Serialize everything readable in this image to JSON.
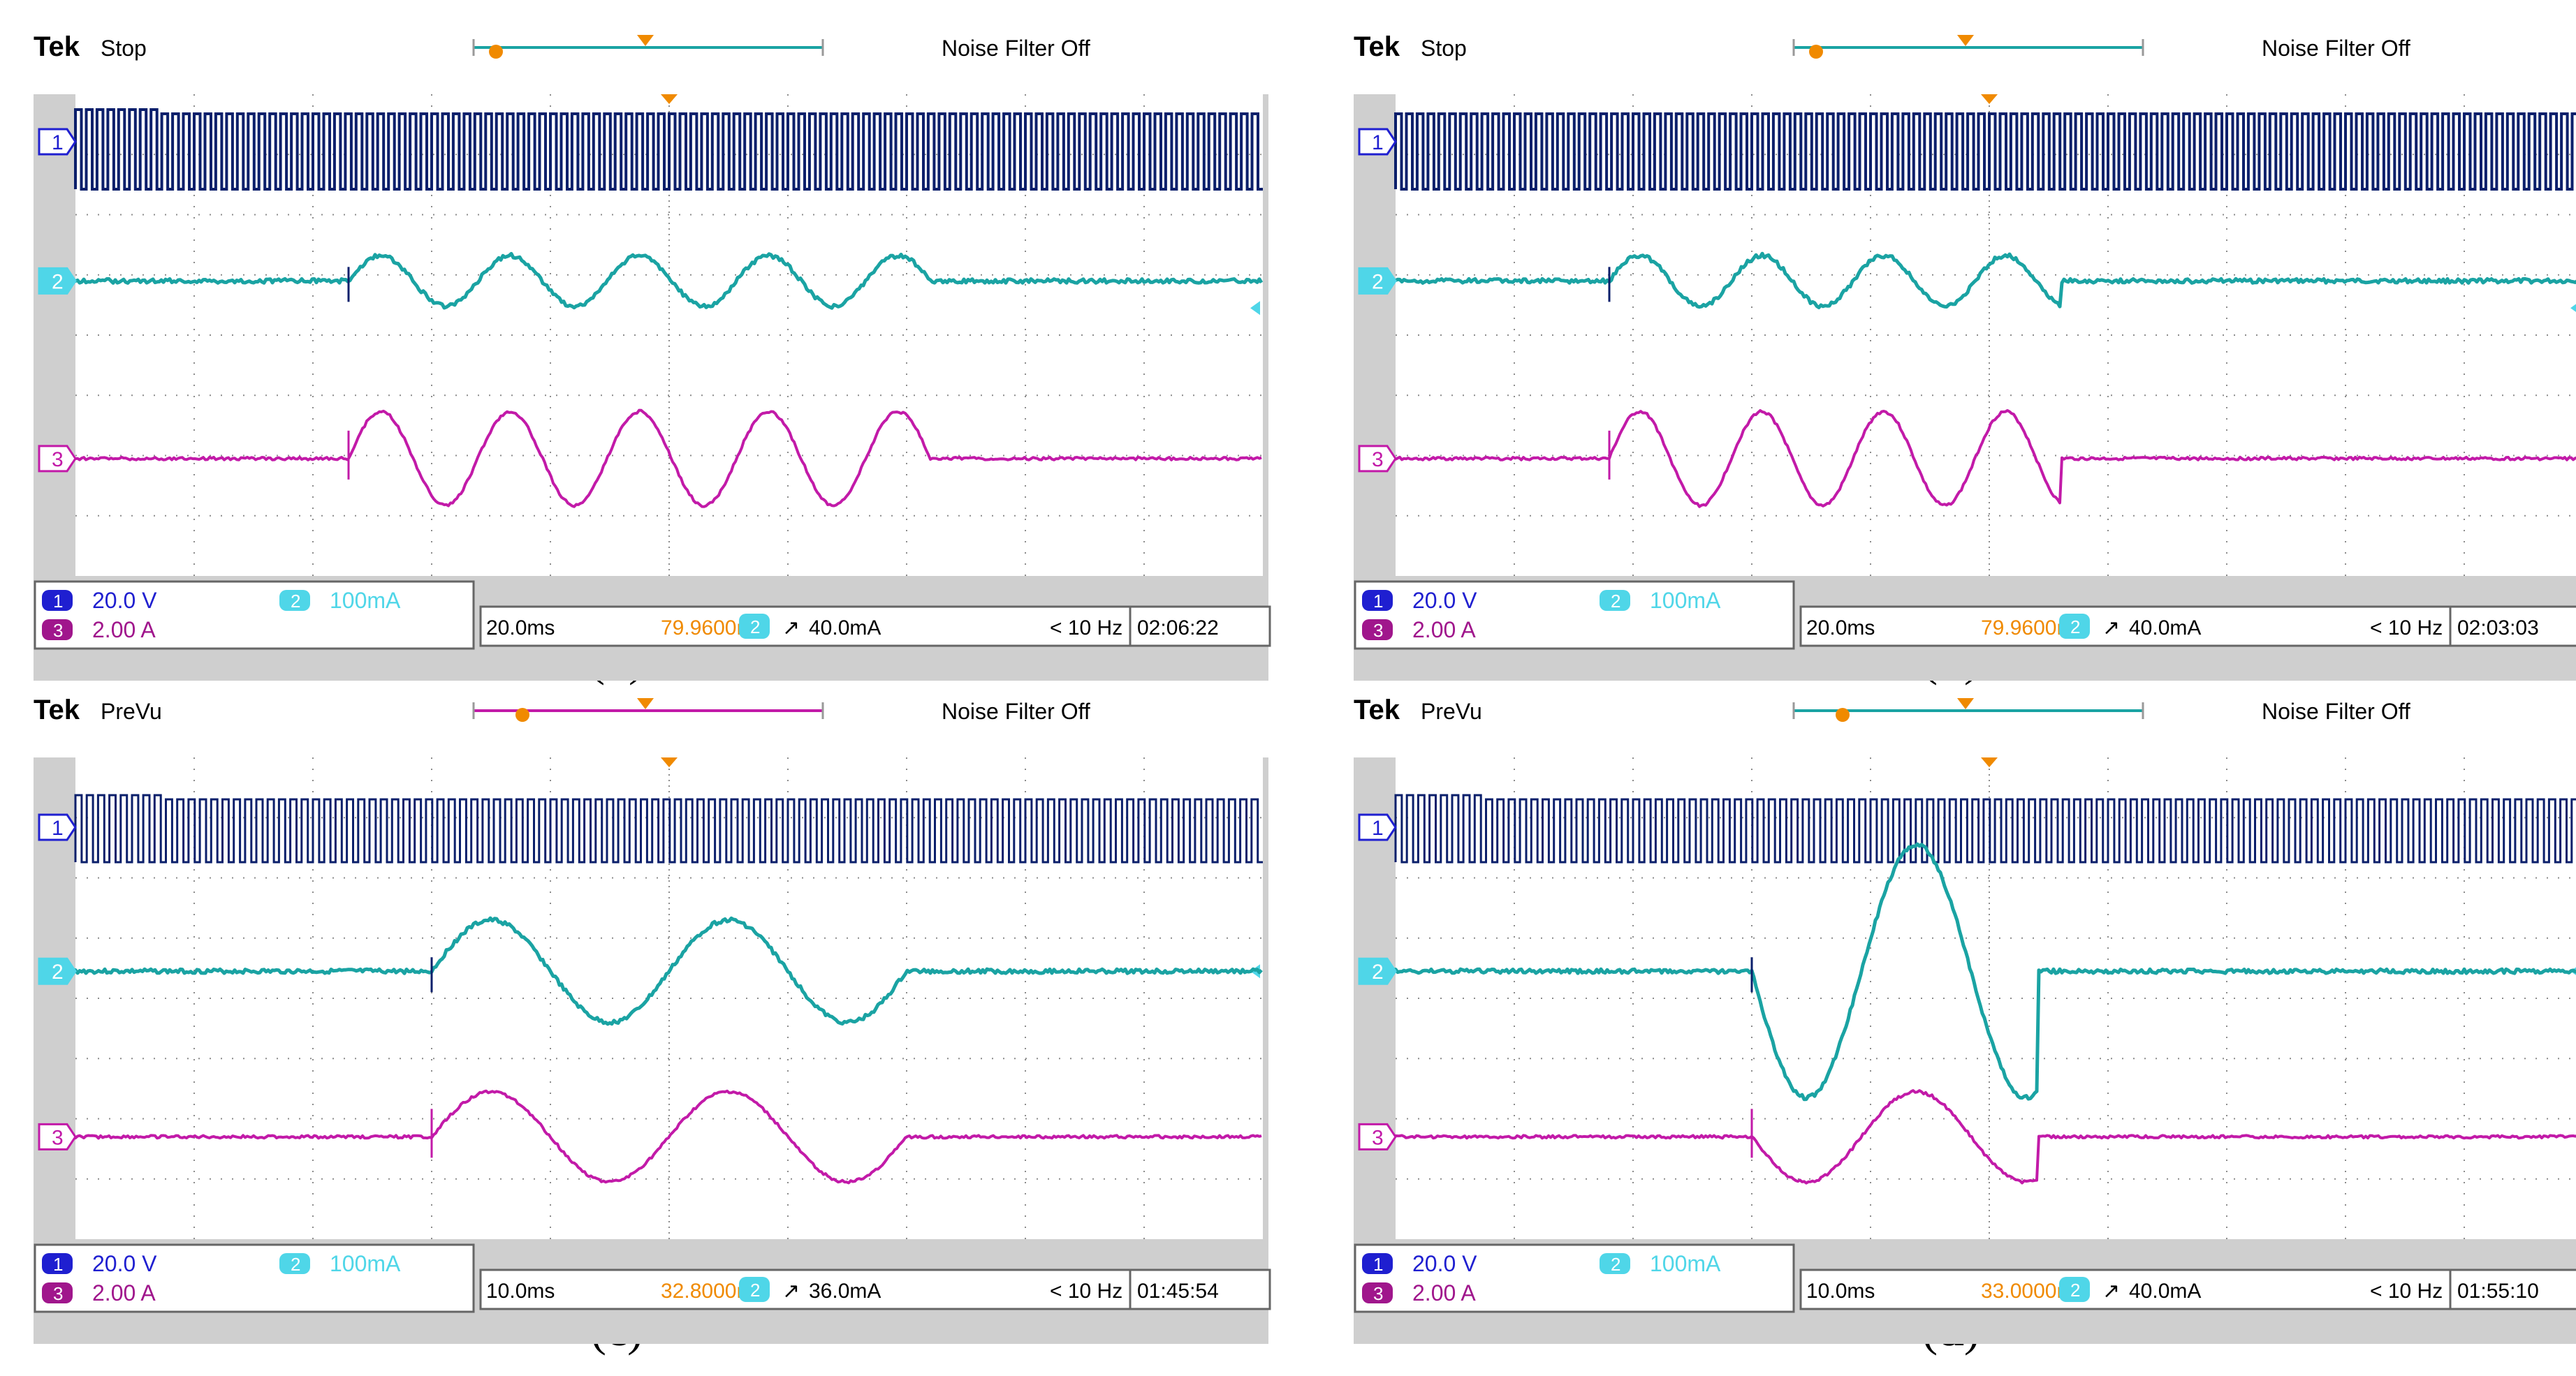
{
  "colors": {
    "ch1": "#0b1f6b",
    "ch1_badge": "#1f1fd0",
    "ch2": "#1aa3a3",
    "ch2_badge": "#4fd6e8",
    "ch3": "#c21aa8",
    "ch3_badge": "#a0168c",
    "orange": "#f08a00",
    "grid": "#8c8c8c",
    "frame": "#cfcfcf"
  },
  "common": {
    "brand": "Tek",
    "noise_filter": "Noise Filter Off",
    "ch1_label": "1",
    "ch2_label": "2",
    "ch3_label": "3",
    "ch1_scale": "20.0 V",
    "ch2_scale": "100mA",
    "ch3_scale": "2.00 A",
    "trigger_freq": "< 10 Hz"
  },
  "panels": [
    {
      "caption": "a",
      "status": "Stop",
      "timebase": "20.0ms",
      "position": "79.9600ms",
      "trigger_level": "40.0mA",
      "time": "02:06:22",
      "cycles": 4.5
    },
    {
      "caption": "b",
      "status": "Stop",
      "timebase": "20.0ms",
      "position": "79.9600ms",
      "trigger_level": "40.0mA",
      "time": "02:03:03",
      "cycles": 3.7
    },
    {
      "caption": "c",
      "status": "PreVu",
      "timebase": "10.0ms",
      "position": "32.8000ms",
      "trigger_level": "36.0mA",
      "time": "01:45:54",
      "cycles": 2
    },
    {
      "caption": "d",
      "status": "PreVu",
      "timebase": "10.0ms",
      "position": "33.0000ms",
      "trigger_level": "40.0mA",
      "time": "01:55:10",
      "cycles": 1.3
    }
  ],
  "chart_data": [
    {
      "type": "line",
      "title": "(a)",
      "xlabel": "time (20.0 ms/div)",
      "ylabel": "",
      "x_divisions": 10,
      "series": [
        {
          "name": "CH1 voltage (20.0 V/div)",
          "shape": "square pulse train",
          "active_from_div": 0,
          "active_to_div": 10
        },
        {
          "name": "CH2 current (100mA/div)",
          "shape": "sinusoid",
          "start_div": 2.3,
          "end_div": 7.2,
          "cycles": 4.5
        },
        {
          "name": "CH3 current (2.00 A/div)",
          "shape": "sinusoid",
          "start_div": 2.3,
          "end_div": 7.2,
          "cycles": 4.5
        }
      ]
    },
    {
      "type": "line",
      "title": "(b)",
      "xlabel": "time (20.0 ms/div)",
      "ylabel": "",
      "x_divisions": 10,
      "series": [
        {
          "name": "CH1 voltage (20.0 V/div)",
          "shape": "square pulse train",
          "active_from_div": 0,
          "active_to_div": 10
        },
        {
          "name": "CH2 current (100mA/div)",
          "shape": "sinusoid",
          "start_div": 1.8,
          "end_div": 5.6,
          "cycles": 3.7
        },
        {
          "name": "CH3 current (2.00 A/div)",
          "shape": "sinusoid",
          "start_div": 1.8,
          "end_div": 5.6,
          "cycles": 3.7
        }
      ]
    },
    {
      "type": "line",
      "title": "(c)",
      "xlabel": "time (10.0 ms/div)",
      "ylabel": "",
      "x_divisions": 10,
      "series": [
        {
          "name": "CH1 voltage (20.0 V/div)",
          "shape": "square pulse train",
          "active_from_div": 0,
          "active_to_div": 10
        },
        {
          "name": "CH2 current (100mA/div)",
          "shape": "sinusoid",
          "start_div": 3.0,
          "end_div": 7.0,
          "cycles": 2
        },
        {
          "name": "CH3 current (2.00 A/div)",
          "shape": "sinusoid",
          "start_div": 3.0,
          "end_div": 7.0,
          "cycles": 2
        }
      ]
    },
    {
      "type": "line",
      "title": "(d)",
      "xlabel": "time (10.0 ms/div)",
      "ylabel": "",
      "x_divisions": 10,
      "series": [
        {
          "name": "CH1 voltage (20.0 V/div)",
          "shape": "square pulse train",
          "active_from_div": 0,
          "active_to_div": 10
        },
        {
          "name": "CH2 current (100mA/div)",
          "shape": "sinusoid",
          "start_div": 3.0,
          "end_div": 5.4,
          "cycles": 1.3
        },
        {
          "name": "CH3 current (2.00 A/div)",
          "shape": "sinusoid",
          "start_div": 3.0,
          "end_div": 5.4,
          "cycles": 1.3
        }
      ]
    }
  ]
}
